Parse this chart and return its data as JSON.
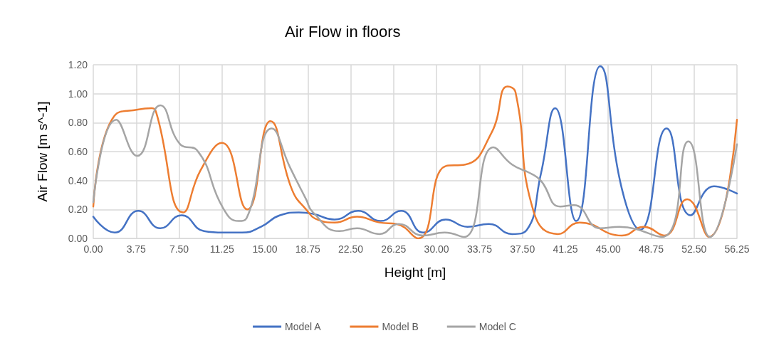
{
  "chart_data": {
    "type": "line",
    "title": "Air Flow in floors",
    "xlabel": "Height [m]",
    "ylabel": "Air Flow [m s^-1]",
    "xlim": [
      0,
      56.25
    ],
    "xticks": [
      {
        "value": 0,
        "label": "0.00"
      },
      {
        "value": 3.75,
        "label": "3.75"
      },
      {
        "value": 7.5,
        "label": "7.50"
      },
      {
        "value": 11.25,
        "label": "11.25"
      },
      {
        "value": 15,
        "label": "15.00"
      },
      {
        "value": 18.75,
        "label": "18.75"
      },
      {
        "value": 22.5,
        "label": "22.50"
      },
      {
        "value": 26.25,
        "label": "26.25"
      },
      {
        "value": 30,
        "label": "30.00"
      },
      {
        "value": 33.75,
        "label": "33.75"
      },
      {
        "value": 37.5,
        "label": "37.50"
      },
      {
        "value": 41.25,
        "label": "41.25"
      },
      {
        "value": 45,
        "label": "45.00"
      },
      {
        "value": 48.75,
        "label": "48.75"
      },
      {
        "value": 52.5,
        "label": "52.50"
      },
      {
        "value": 56.25,
        "label": "56.25"
      }
    ],
    "ylim": [
      0,
      1.2
    ],
    "yticks": [
      {
        "value": 0,
        "label": "0.00"
      },
      {
        "value": 0.2,
        "label": "0.20"
      },
      {
        "value": 0.4,
        "label": "0.40"
      },
      {
        "value": 0.6,
        "label": "0.60"
      },
      {
        "value": 0.8,
        "label": "0.80"
      },
      {
        "value": 1,
        "label": "1.00"
      },
      {
        "value": 1.2,
        "label": "1.20"
      }
    ],
    "grid": true,
    "legend": "bottom",
    "marker": "none",
    "line_style": "solid",
    "series": [
      {
        "name": "Model A",
        "color": "#4472c4",
        "x": [
          0,
          1.87,
          3.94,
          5.85,
          7.71,
          9.68,
          11.34,
          13.0,
          14.66,
          16.31,
          17.97,
          19.2,
          21.08,
          23.15,
          25.1,
          26.9,
          28.85,
          30.8,
          32.7,
          34.56,
          36.6,
          37.9,
          39.1,
          40.36,
          42.2,
          44.3,
          46.2,
          47.8,
          50.1,
          52.2,
          54.25,
          56.25
        ],
        "values": [
          0.15,
          0.04,
          0.19,
          0.07,
          0.16,
          0.05,
          0.04,
          0.04,
          0.08,
          0.16,
          0.18,
          0.17,
          0.13,
          0.19,
          0.12,
          0.19,
          0.04,
          0.13,
          0.08,
          0.1,
          0.03,
          0.06,
          0.44,
          0.9,
          0.12,
          1.19,
          0.34,
          0.06,
          0.76,
          0.16,
          0.36,
          0.31
        ]
      },
      {
        "name": "Model B",
        "color": "#ed7d31",
        "x": [
          0,
          1.87,
          3.88,
          5.1,
          5.5,
          7.86,
          9.37,
          11.24,
          13.45,
          15.48,
          17.35,
          18.6,
          19.6,
          21.1,
          23.05,
          25.0,
          26.5,
          28.4,
          30.8,
          32.5,
          34.8,
          36.2,
          36.9,
          38.5,
          40.6,
          42.5,
          46.2,
          48.1,
          49.9,
          51.9,
          53.8,
          56.25
        ],
        "values": [
          0.22,
          0.85,
          0.89,
          0.9,
          0.87,
          0.18,
          0.47,
          0.66,
          0.2,
          0.81,
          0.34,
          0.2,
          0.13,
          0.11,
          0.15,
          0.11,
          0.1,
          0.0,
          0.5,
          0.51,
          0.73,
          1.05,
          1.01,
          0.18,
          0.03,
          0.11,
          0.02,
          0.08,
          0.02,
          0.27,
          0.01,
          0.82
        ]
      },
      {
        "name": "Model C",
        "color": "#a5a5a5",
        "x": [
          0,
          2.0,
          3.84,
          5.85,
          7.6,
          9.06,
          11.34,
          12.7,
          13.4,
          15.6,
          17.2,
          18.6,
          19.2,
          21.5,
          23.05,
          25.0,
          26.7,
          28.8,
          30.7,
          32.4,
          34.97,
          36.6,
          38.2,
          39.1,
          40.8,
          42.0,
          44.3,
          45.97,
          49.7,
          52.0,
          53.9,
          56.25
        ],
        "values": [
          0.25,
          0.82,
          0.57,
          0.92,
          0.65,
          0.61,
          0.21,
          0.12,
          0.14,
          0.76,
          0.49,
          0.27,
          0.18,
          0.05,
          0.07,
          0.03,
          0.1,
          0.02,
          0.04,
          0.01,
          0.63,
          0.51,
          0.45,
          0.4,
          0.22,
          0.23,
          0.07,
          0.08,
          0.01,
          0.67,
          0.01,
          0.65
        ]
      }
    ]
  }
}
